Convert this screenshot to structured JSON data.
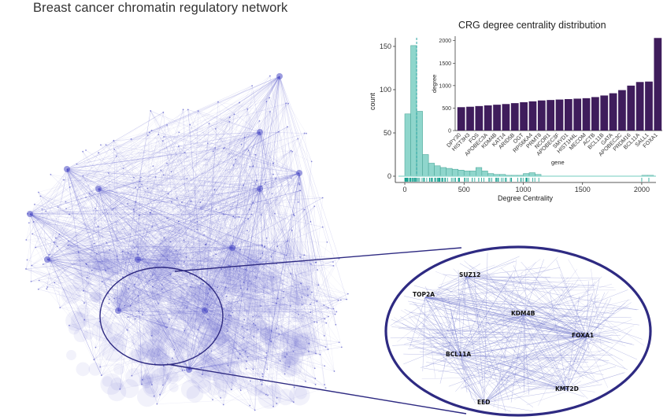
{
  "title": "Breast cancer chromatin regulatory network",
  "network": {
    "node_color": "#4a4bc4",
    "outline_color": "#2e2a82"
  },
  "zoom_labels": [
    "SUZ12",
    "TOP2A",
    "KDM4B",
    "FOXA1",
    "BCL11A",
    "KMT2D",
    "EED"
  ],
  "chart_data": [
    {
      "type": "bar",
      "title": "",
      "xlabel": "Degree Centrality",
      "ylabel": "count",
      "bar_color": "#8fd6cc",
      "rug_color": "#16a08f",
      "mean_line_color": "#28a2a0",
      "xlim": [
        -80,
        2120
      ],
      "ylim": [
        0,
        160
      ],
      "x_ticks": [
        0,
        500,
        1000,
        1500,
        2000
      ],
      "y_ticks": [
        0,
        50,
        100,
        150
      ],
      "bin_width": 50,
      "bins_start": [
        0,
        50,
        100,
        150,
        200,
        250,
        300,
        350,
        400,
        450,
        500,
        550,
        600,
        650,
        700,
        750,
        800,
        850,
        900,
        950,
        1000,
        1050,
        1100,
        2000,
        2050
      ],
      "counts": [
        72,
        151,
        75,
        25,
        15,
        12,
        10,
        9,
        8,
        7,
        6,
        6,
        10,
        6,
        3,
        2,
        2,
        1,
        1,
        1,
        3,
        4,
        2,
        1,
        1
      ],
      "mean_line_x": 100
    },
    {
      "type": "bar",
      "title": "CRG degree centrality distribution",
      "xlabel": "gene",
      "ylabel": "degree",
      "bar_color": "#3f1d5c",
      "ylim": [
        0,
        2100
      ],
      "y_ticks": [
        0,
        500,
        1000,
        1500,
        2000
      ],
      "categories": [
        "DPY30",
        "HIST3H3",
        "FOS",
        "APOBEC3A",
        "KDM4B",
        "KAT14",
        "ARID5B",
        "OGT",
        "RPS6KA4",
        "PRMT8",
        "NCOR1",
        "APOBEC3F",
        "SMYD1",
        "HIST1H4L",
        "MECOM",
        "ACTB",
        "BCL11B",
        "GATA",
        "APOBEC3C",
        "PRDM16",
        "BCL11A",
        "SALL1",
        "FOXA1"
      ],
      "values": [
        520,
        530,
        545,
        560,
        575,
        590,
        610,
        630,
        650,
        670,
        680,
        690,
        700,
        710,
        720,
        745,
        780,
        830,
        900,
        1000,
        1080,
        1090,
        2060
      ]
    }
  ]
}
